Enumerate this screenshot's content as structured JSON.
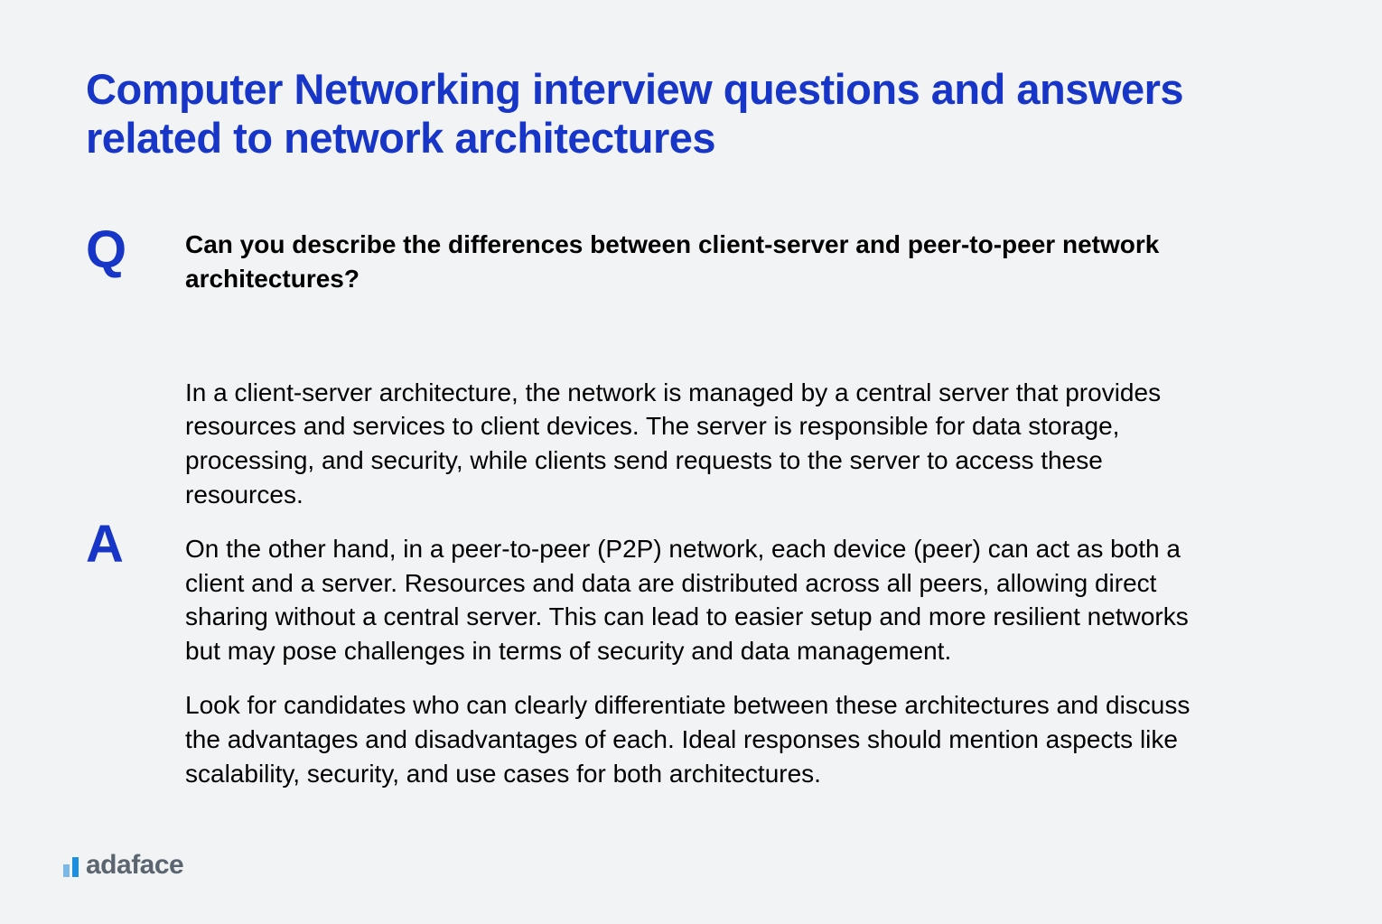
{
  "title": "Computer Networking interview questions and answers related to network architectures",
  "q_marker": "Q",
  "a_marker": "A",
  "question": "Can you describe the differences between client-server and peer-to-peer network architectures?",
  "answer": {
    "p1": "In a client-server architecture, the network is managed by a central server that provides resources and services to client devices. The server is responsible for data storage, processing, and security, while clients send requests to the server to access these resources.",
    "p2": "On the other hand, in a peer-to-peer (P2P) network, each device (peer) can act as both a client and a server. Resources and data are distributed across all peers, allowing direct sharing without a central server. This can lead to easier setup and more resilient networks but may pose challenges in terms of security and data management.",
    "p3": "Look for candidates who can clearly differentiate between these architectures and discuss the advantages and disadvantages of each. Ideal responses should mention aspects like scalability, security, and use cases for both architectures."
  },
  "brand": "adaface",
  "colors": {
    "background": "#f2f3f5",
    "title": "#1735c6",
    "marker": "#1735c6",
    "body_text": "#000000",
    "brand_text": "#5a6570",
    "logo_bar_light": "#7bb8e8",
    "logo_bar_dark": "#1d8fe0"
  },
  "typography": {
    "title_fontsize": 47,
    "title_weight": 700,
    "marker_fontsize": 58,
    "marker_weight": 800,
    "question_fontsize": 28,
    "question_weight": 600,
    "answer_fontsize": 28,
    "answer_weight": 500,
    "brand_fontsize": 30,
    "brand_weight": 700
  }
}
